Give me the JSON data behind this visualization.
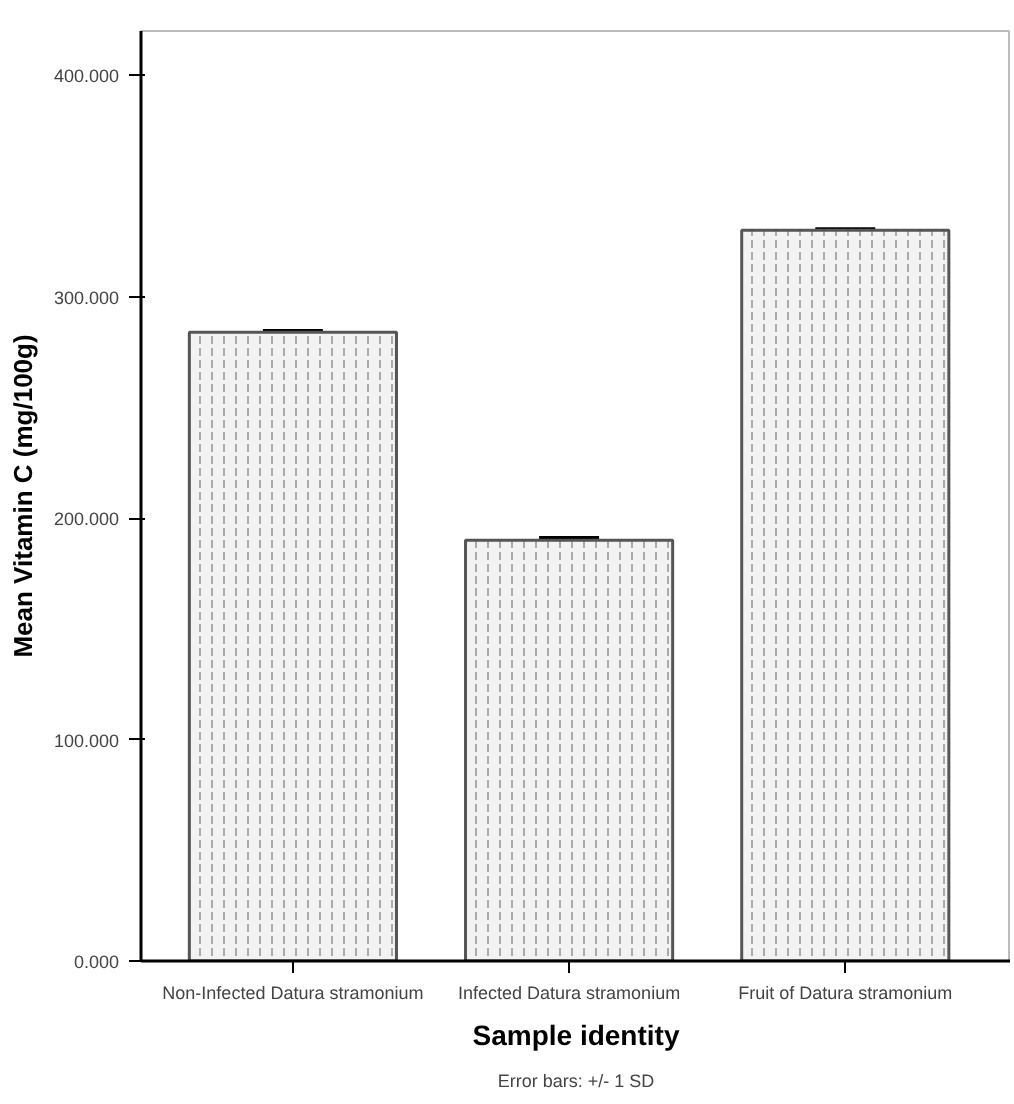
{
  "chart_data": {
    "type": "bar",
    "categories": [
      "Non-Infected Datura stramonium",
      "Infected Datura stramonium",
      "Fruit of Datura stramonium"
    ],
    "values": [
      284,
      190,
      330
    ],
    "errors": [
      0.5,
      1,
      0.5
    ],
    "color": "#f2f2f2",
    "xlabel": "Sample identity",
    "ylabel": "Mean Vitamin C (mg/100g)",
    "ylim": [
      0,
      420
    ],
    "yticks": [
      {
        "value": 0,
        "label": "0.000"
      },
      {
        "value": 100,
        "label": "100.000"
      },
      {
        "value": 200,
        "label": "200.000"
      },
      {
        "value": 300,
        "label": "300.000"
      },
      {
        "value": 400,
        "label": "400.000"
      }
    ],
    "grid": false,
    "annotations": [
      "Error bars: +/- 1 SD"
    ]
  }
}
